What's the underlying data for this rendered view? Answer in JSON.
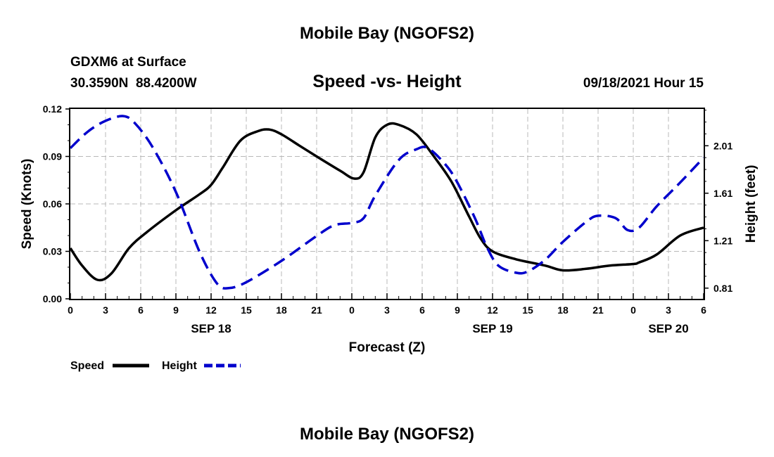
{
  "header": {
    "title": "Mobile Bay (NGOFS2)",
    "station": "GDXM6 at Surface",
    "coords": "30.3590N  88.4200W",
    "subtitle": "Speed -vs- Height",
    "datetime": "09/18/2021 Hour 15"
  },
  "footer": {
    "title": "Mobile Bay (NGOFS2)"
  },
  "legend": {
    "speed_label": "Speed",
    "height_label": "Height"
  },
  "colors": {
    "speed": "#000000",
    "height": "#0000cc",
    "grid": "#b8b8b8"
  },
  "chart_data": {
    "type": "line",
    "xlabel": "Forecast (Z)",
    "ylabel": "Speed (Knots)",
    "y2label": "Height (feet)",
    "xlim": [
      0,
      54
    ],
    "ylim": [
      0,
      0.12
    ],
    "y2lim": [
      0.72,
      2.32
    ],
    "grid": true,
    "legend_position": "bottom-left",
    "x_ticks": [
      0,
      3,
      6,
      9,
      12,
      15,
      18,
      21,
      24,
      27,
      30,
      33,
      36,
      39,
      42,
      45,
      48,
      51,
      54
    ],
    "x_tick_labels": [
      "0",
      "3",
      "6",
      "9",
      "12",
      "15",
      "18",
      "21",
      "0",
      "3",
      "6",
      "9",
      "12",
      "15",
      "18",
      "21",
      "0",
      "3",
      "6"
    ],
    "y_ticks": [
      "0.00",
      "0.03",
      "0.06",
      "0.09",
      "0.12"
    ],
    "y2_ticks": [
      "0.81",
      "1.21",
      "1.61",
      "2.01"
    ],
    "date_labels": [
      {
        "x": 12,
        "label": "SEP 18"
      },
      {
        "x": 36,
        "label": "SEP 19"
      },
      {
        "x": 51,
        "label": "SEP 20"
      }
    ],
    "series": [
      {
        "name": "Speed",
        "axis": "left",
        "style": "solid",
        "x": [
          0,
          1,
          2.3,
          3.5,
          5,
          6.5,
          9,
          11,
          12,
          13,
          14.5,
          16,
          17,
          18,
          19.5,
          21,
          23,
          24.2,
          25,
          26,
          27,
          28,
          29.5,
          31,
          32.5,
          34,
          35,
          36,
          38,
          40.5,
          42,
          44,
          46,
          48,
          48.5,
          50,
          52,
          54
        ],
        "y": [
          0.032,
          0.021,
          0.012,
          0.016,
          0.032,
          0.042,
          0.056,
          0.066,
          0.072,
          0.083,
          0.1,
          0.106,
          0.107,
          0.104,
          0.097,
          0.09,
          0.081,
          0.076,
          0.08,
          0.102,
          0.11,
          0.11,
          0.104,
          0.09,
          0.074,
          0.052,
          0.038,
          0.03,
          0.025,
          0.021,
          0.018,
          0.019,
          0.021,
          0.022,
          0.023,
          0.028,
          0.04,
          0.045
        ]
      },
      {
        "name": "Height",
        "axis": "right",
        "style": "dashed",
        "x": [
          0,
          1.5,
          3,
          4.5,
          5.5,
          7,
          9,
          11,
          12.5,
          13.5,
          15,
          18,
          21,
          22.5,
          24,
          25,
          26,
          28,
          29.5,
          30.5,
          32,
          33,
          34.5,
          35.5,
          36.5,
          38,
          39,
          40.5,
          42,
          44,
          45,
          46.5,
          47.5,
          48.5,
          50,
          52,
          54
        ],
        "y": [
          1.99,
          2.13,
          2.22,
          2.26,
          2.2,
          2.0,
          1.62,
          1.12,
          0.85,
          0.81,
          0.86,
          1.04,
          1.25,
          1.34,
          1.36,
          1.4,
          1.59,
          1.89,
          1.98,
          1.99,
          1.85,
          1.7,
          1.4,
          1.16,
          1.0,
          0.94,
          0.95,
          1.05,
          1.2,
          1.37,
          1.42,
          1.4,
          1.3,
          1.32,
          1.5,
          1.7,
          1.91
        ]
      }
    ]
  }
}
